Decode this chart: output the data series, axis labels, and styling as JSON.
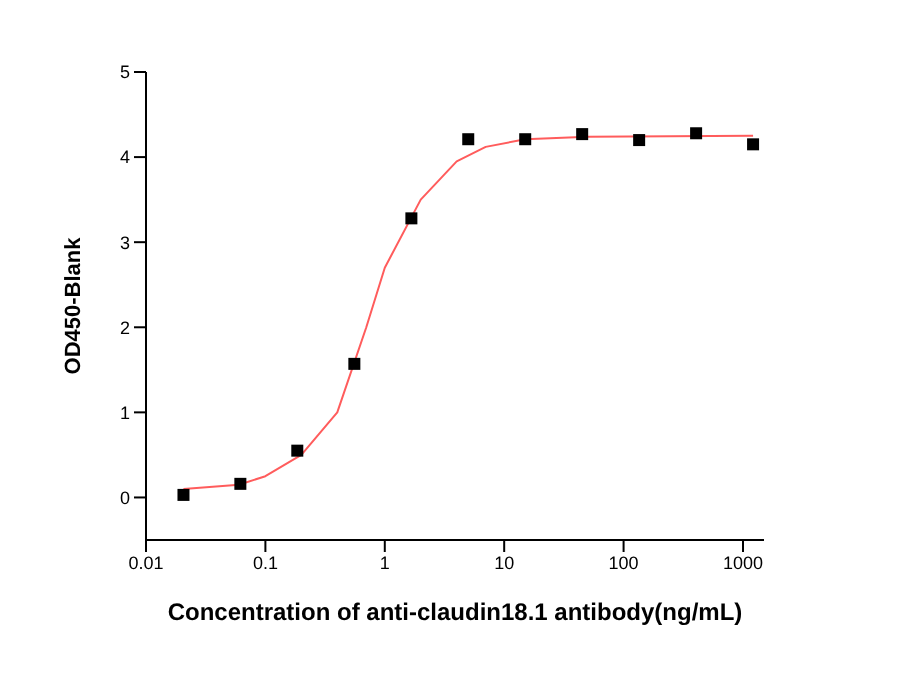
{
  "chart_data": {
    "type": "scatter",
    "xlabel": "Concentration of anti-claudin18.1 antibody(ng/mL)",
    "ylabel": "OD450-Blank",
    "log": "x",
    "xlim": [
      0.01,
      1500
    ],
    "xticks": [
      0.01,
      0.1,
      1,
      10,
      100,
      1000
    ],
    "ylim": [
      -0.5,
      5
    ],
    "yticks": [
      0,
      1,
      2,
      3,
      4,
      5
    ],
    "grid": false,
    "x": [
      0.0206,
      0.0617,
      0.185,
      0.556,
      1.67,
      5,
      15,
      45,
      135,
      405,
      1215
    ],
    "series": [
      {
        "marker": "square",
        "color": "#000000",
        "values": [
          0.03,
          0.16,
          0.55,
          1.57,
          3.28,
          4.21,
          4.21,
          4.27,
          4.2,
          4.28,
          4.15
        ]
      },
      {
        "type": "line",
        "color": "#ff5c5c",
        "x": [
          0.0206,
          0.06,
          0.1,
          0.2,
          0.4,
          0.7,
          1,
          2,
          4,
          7,
          15,
          50,
          1215
        ],
        "values": [
          0.1,
          0.15,
          0.25,
          0.5,
          1.0,
          2.0,
          2.7,
          3.5,
          3.95,
          4.12,
          4.21,
          4.24,
          4.25
        ]
      }
    ]
  }
}
